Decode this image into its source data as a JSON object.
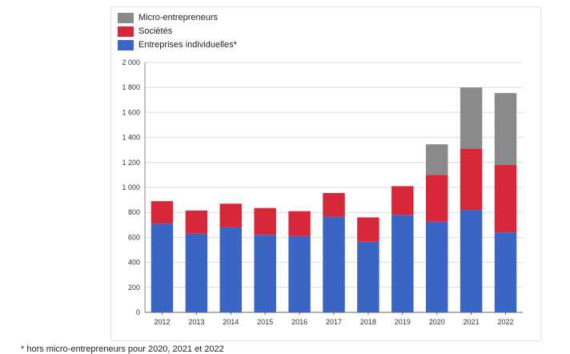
{
  "chart_data": {
    "type": "bar",
    "stacked": true,
    "categories": [
      "2012",
      "2013",
      "2014",
      "2015",
      "2016",
      "2017",
      "2018",
      "2019",
      "2020",
      "2021",
      "2022"
    ],
    "series": [
      {
        "name": "Entreprises individuelles*",
        "color": "#3a65c4",
        "values": [
          710,
          630,
          680,
          620,
          610,
          765,
          565,
          780,
          725,
          820,
          640
        ]
      },
      {
        "name": "Sociétés",
        "color": "#d62839",
        "values": [
          180,
          185,
          190,
          215,
          200,
          190,
          195,
          230,
          375,
          490,
          540
        ]
      },
      {
        "name": "Micro-entrepreneurs",
        "color": "#8a8a8a",
        "values": [
          0,
          0,
          0,
          0,
          0,
          0,
          0,
          0,
          245,
          490,
          575
        ]
      }
    ],
    "ylim": [
      0,
      2000
    ],
    "yticks": [
      "0",
      "200",
      "400",
      "600",
      "800",
      "1 000",
      "1 200",
      "1 400",
      "1 600",
      "1 800",
      "2 000"
    ],
    "ytick_values": [
      0,
      200,
      400,
      600,
      800,
      1000,
      1200,
      1400,
      1600,
      1800,
      2000
    ],
    "grid": true,
    "legend_position": "top-left",
    "legend": [
      "Micro-entrepreneurs",
      "Sociétés",
      "Entreprises individuelles*"
    ]
  },
  "footnote": "* hors micro-entrepreneurs pour 2020, 2021 et 2022"
}
